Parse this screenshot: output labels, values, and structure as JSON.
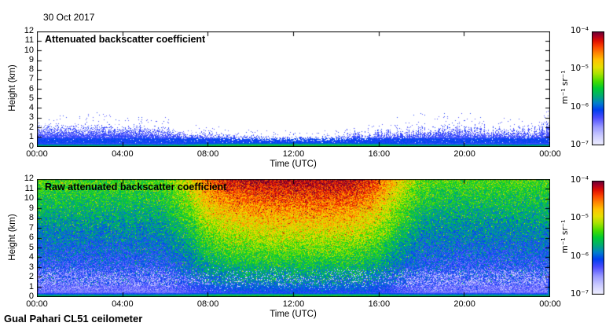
{
  "page": {
    "background_color": "#ffffff",
    "text_color": "#000000"
  },
  "header": {
    "date_label": "30 Oct 2017"
  },
  "footer": {
    "station_label": "Gual Pahari CL51 ceilometer"
  },
  "colors": {
    "axis_color": "#000000",
    "colormap_stops": [
      {
        "t": 0.0,
        "color": "#f0f0ff"
      },
      {
        "t": 0.08,
        "color": "#ccccff"
      },
      {
        "t": 0.16,
        "color": "#9999ff"
      },
      {
        "t": 0.24,
        "color": "#4d4dff"
      },
      {
        "t": 0.31,
        "color": "#0040f0"
      },
      {
        "t": 0.37,
        "color": "#0080cc"
      },
      {
        "t": 0.43,
        "color": "#00aa77"
      },
      {
        "t": 0.5,
        "color": "#00cc33"
      },
      {
        "t": 0.56,
        "color": "#44dd00"
      },
      {
        "t": 0.63,
        "color": "#aae300"
      },
      {
        "t": 0.69,
        "color": "#e8e000"
      },
      {
        "t": 0.75,
        "color": "#ffc400"
      },
      {
        "t": 0.81,
        "color": "#ff8800"
      },
      {
        "t": 0.87,
        "color": "#fb4400"
      },
      {
        "t": 0.92,
        "color": "#e01000"
      },
      {
        "t": 0.96,
        "color": "#ad0022"
      },
      {
        "t": 1.0,
        "color": "#660033"
      }
    ]
  },
  "chart_data": [
    {
      "type": "heatmap",
      "panel": "top",
      "title": "Attenuated backscatter coefficient",
      "xlabel": "Time (UTC)",
      "ylabel": "Height (km)",
      "xlim_hours": [
        0,
        24
      ],
      "ylim_km": [
        0,
        12
      ],
      "x_tick_hours": [
        0,
        4,
        8,
        12,
        16,
        20,
        24
      ],
      "x_tick_labels": [
        "00:00",
        "04:00",
        "08:00",
        "12:00",
        "16:00",
        "20:00",
        "00:00"
      ],
      "y_tick_km": [
        0,
        1,
        2,
        3,
        4,
        5,
        6,
        7,
        8,
        9,
        10,
        11,
        12
      ],
      "y_tick_labels": [
        "0",
        "1",
        "2",
        "3",
        "4",
        "5",
        "6",
        "7",
        "8",
        "9",
        "10",
        "11",
        "12"
      ],
      "grid": false,
      "colorbar": {
        "tick_labels": [
          "10⁻⁴",
          "10⁻⁵",
          "10⁻⁶",
          "10⁻⁷"
        ],
        "unit": "m⁻¹ sr⁻¹",
        "scale": "log10",
        "range_m1sr1": [
          1e-07,
          0.0001
        ]
      },
      "series": [
        {
          "name": "aerosol_layer_top_km",
          "x_hours": [
            0,
            1,
            2,
            3,
            4,
            5,
            6,
            7,
            8,
            9,
            10,
            11,
            12,
            13,
            14,
            15,
            16,
            17,
            18,
            19,
            20,
            21,
            22,
            23,
            24
          ],
          "values": [
            2.35,
            2.3,
            2.3,
            2.25,
            2.2,
            2.1,
            2.0,
            1.55,
            1.45,
            1.35,
            1.25,
            1.15,
            1.1,
            1.1,
            1.2,
            1.35,
            1.55,
            1.8,
            1.95,
            2.0,
            2.0,
            1.95,
            1.9,
            1.9,
            2.5
          ]
        },
        {
          "name": "surface_layer_top_km",
          "x_hours": [
            0,
            24
          ],
          "values": [
            0.45,
            0.45
          ]
        }
      ]
    },
    {
      "type": "heatmap",
      "panel": "bottom",
      "title": "Raw attenuated backscatter coefficient",
      "xlabel": "Time (UTC)",
      "ylabel": "Height (km)",
      "xlim_hours": [
        0,
        24
      ],
      "ylim_km": [
        0,
        12
      ],
      "x_tick_hours": [
        0,
        4,
        8,
        12,
        16,
        20,
        24
      ],
      "x_tick_labels": [
        "00:00",
        "04:00",
        "08:00",
        "12:00",
        "16:00",
        "20:00",
        "00:00"
      ],
      "y_tick_km": [
        0,
        1,
        2,
        3,
        4,
        5,
        6,
        7,
        8,
        9,
        10,
        11,
        12
      ],
      "y_tick_labels": [
        "0",
        "1",
        "2",
        "3",
        "4",
        "5",
        "6",
        "7",
        "8",
        "9",
        "10",
        "11",
        "12"
      ],
      "grid": false,
      "colorbar": {
        "tick_labels": [
          "10⁻⁴",
          "10⁻⁵",
          "10⁻⁶",
          "10⁻⁷"
        ],
        "unit": "m⁻¹ sr⁻¹",
        "scale": "log10",
        "range_m1sr1": [
          1e-07,
          0.0001
        ]
      },
      "series": [
        {
          "name": "solar_background_fraction",
          "x_hours": [
            0,
            1,
            2,
            3,
            4,
            5,
            6,
            7,
            8,
            9,
            10,
            11,
            12,
            13,
            14,
            15,
            16,
            17,
            18,
            19,
            20,
            21,
            22,
            23,
            24
          ],
          "values": [
            0,
            0,
            0,
            0,
            0,
            0,
            0.05,
            0.3,
            0.72,
            0.9,
            0.97,
            1,
            1,
            1,
            1,
            0.95,
            0.75,
            0.35,
            0.06,
            0,
            0,
            0,
            0,
            0,
            0
          ]
        },
        {
          "name": "surface_layer_top_km",
          "x_hours": [
            0,
            24
          ],
          "values": [
            0.45,
            0.45
          ]
        }
      ]
    }
  ]
}
